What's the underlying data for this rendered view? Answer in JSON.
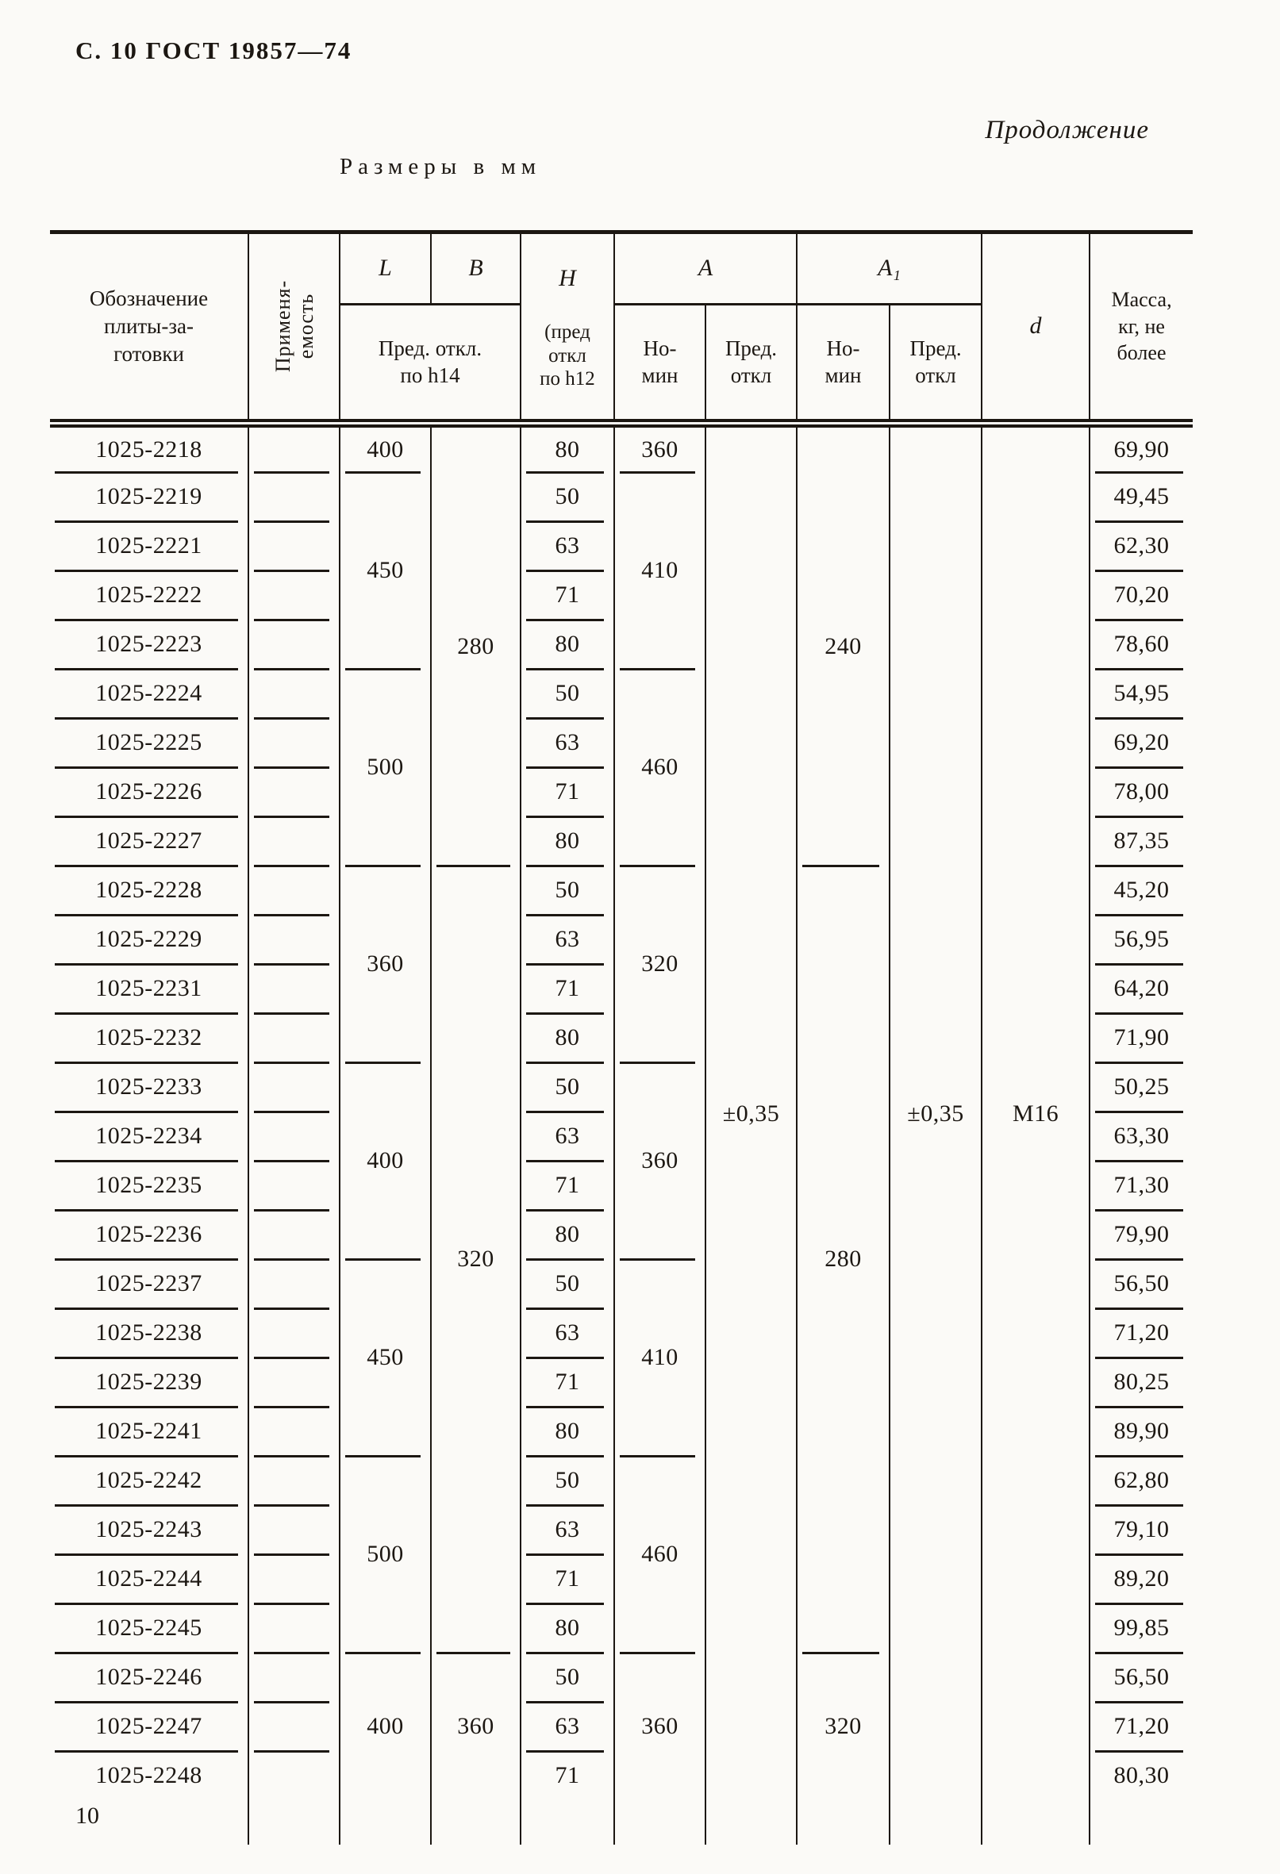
{
  "page": {
    "doc_header": "С. 10 ГОСТ 19857—74",
    "continuation": "Продолжение",
    "units_title": "Размеры в мм",
    "page_number": "10"
  },
  "colors": {
    "ink": "#1c1712",
    "paper": "#fbfaf7"
  },
  "table": {
    "headers": {
      "designation": "Обозначение\nплиты-за-\nготовки",
      "applicability": "Применя-\nемость",
      "L": "L",
      "B": "B",
      "LB_sub": "Пред. откл.\nпо h14",
      "H_label": "H",
      "H_note": "(пред\nоткл\nпо h12",
      "A": "A",
      "A1": "A₁",
      "nominal": "Но-\nмин",
      "deviation": "Пред.\nоткл",
      "d": "d",
      "mass": "Масса,\nкг, не\nболее"
    },
    "rows": [
      {
        "des": "1025-2218",
        "h": "80",
        "mass": "69,90",
        "L": {
          "v": "400",
          "span": 1
        },
        "B": {
          "v": "280",
          "span": 9
        },
        "A": {
          "v": "360",
          "span": 1
        },
        "Adev": {
          "v": "±0,35",
          "span": 28
        },
        "A1": {
          "v": "240",
          "span": 9
        },
        "A1dev": {
          "v": "±0,35",
          "span": 28
        },
        "d": {
          "v": "М16",
          "span": 28
        }
      },
      {
        "des": "1025-2219",
        "h": "50",
        "mass": "49,45",
        "L": {
          "v": "450",
          "span": 4
        },
        "A": {
          "v": "410",
          "span": 4
        }
      },
      {
        "des": "1025-2221",
        "h": "63",
        "mass": "62,30"
      },
      {
        "des": "1025-2222",
        "h": "71",
        "mass": "70,20"
      },
      {
        "des": "1025-2223",
        "h": "80",
        "mass": "78,60"
      },
      {
        "des": "1025-2224",
        "h": "50",
        "mass": "54,95",
        "L": {
          "v": "500",
          "span": 4
        },
        "A": {
          "v": "460",
          "span": 4
        }
      },
      {
        "des": "1025-2225",
        "h": "63",
        "mass": "69,20"
      },
      {
        "des": "1025-2226",
        "h": "71",
        "mass": "78,00"
      },
      {
        "des": "1025-2227",
        "h": "80",
        "mass": "87,35"
      },
      {
        "des": "1025-2228",
        "h": "50",
        "mass": "45,20",
        "L": {
          "v": "360",
          "span": 4
        },
        "B": {
          "v": "320",
          "span": 16
        },
        "A": {
          "v": "320",
          "span": 4
        },
        "A1": {
          "v": "280",
          "span": 16
        }
      },
      {
        "des": "1025-2229",
        "h": "63",
        "mass": "56,95"
      },
      {
        "des": "1025-2231",
        "h": "71",
        "mass": "64,20"
      },
      {
        "des": "1025-2232",
        "h": "80",
        "mass": "71,90"
      },
      {
        "des": "1025-2233",
        "h": "50",
        "mass": "50,25",
        "L": {
          "v": "400",
          "span": 4
        },
        "A": {
          "v": "360",
          "span": 4
        }
      },
      {
        "des": "1025-2234",
        "h": "63",
        "mass": "63,30"
      },
      {
        "des": "1025-2235",
        "h": "71",
        "mass": "71,30"
      },
      {
        "des": "1025-2236",
        "h": "80",
        "mass": "79,90"
      },
      {
        "des": "1025-2237",
        "h": "50",
        "mass": "56,50",
        "L": {
          "v": "450",
          "span": 4
        },
        "A": {
          "v": "410",
          "span": 4
        }
      },
      {
        "des": "1025-2238",
        "h": "63",
        "mass": "71,20"
      },
      {
        "des": "1025-2239",
        "h": "71",
        "mass": "80,25"
      },
      {
        "des": "1025-2241",
        "h": "80",
        "mass": "89,90"
      },
      {
        "des": "1025-2242",
        "h": "50",
        "mass": "62,80",
        "L": {
          "v": "500",
          "span": 4
        },
        "A": {
          "v": "460",
          "span": 4
        }
      },
      {
        "des": "1025-2243",
        "h": "63",
        "mass": "79,10"
      },
      {
        "des": "1025-2244",
        "h": "71",
        "mass": "89,20"
      },
      {
        "des": "1025-2245",
        "h": "80",
        "mass": "99,85"
      },
      {
        "des": "1025-2246",
        "h": "50",
        "mass": "56,50",
        "L": {
          "v": "400",
          "span": 3
        },
        "B": {
          "v": "360",
          "span": 3
        },
        "A": {
          "v": "360",
          "span": 3
        },
        "A1": {
          "v": "320",
          "span": 3
        }
      },
      {
        "des": "1025-2247",
        "h": "63",
        "mass": "71,20"
      },
      {
        "des": "1025-2248",
        "h": "71",
        "mass": "80,30"
      }
    ]
  }
}
